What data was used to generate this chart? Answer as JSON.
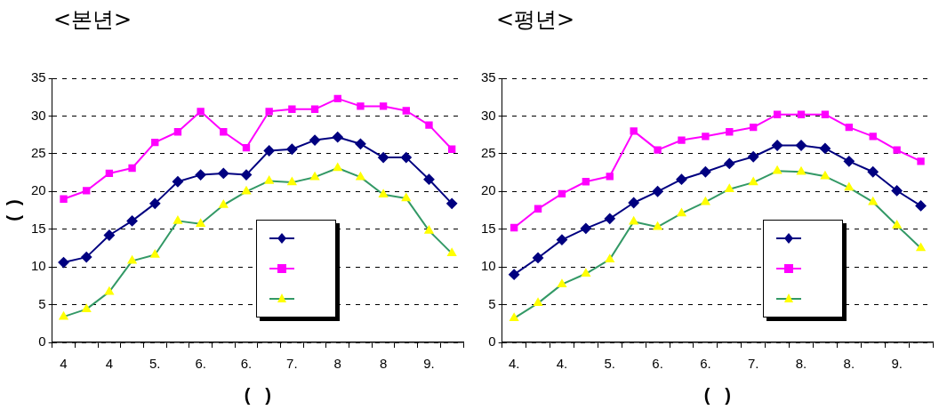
{
  "chart_data": [
    {
      "type": "line",
      "title": "<본년>",
      "xlabel": "(   )",
      "ylabel": "(  )",
      "categories": [
        "4",
        null,
        "4",
        null,
        "5.",
        null,
        "6.",
        null,
        "6.",
        null,
        "7.",
        null,
        "8",
        null,
        "8",
        null,
        "9.",
        null
      ],
      "ylim": [
        0,
        35
      ],
      "yticks": [
        0,
        5,
        10,
        15,
        20,
        25,
        30,
        35
      ],
      "grid": "y",
      "line_style": "solid",
      "series": [
        {
          "color": "#000080",
          "marker": "diamond",
          "values": [
            10.6,
            11.3,
            14.2,
            16.1,
            18.4,
            21.3,
            22.2,
            22.4,
            22.2,
            25.4,
            25.6,
            26.8,
            27.2,
            26.3,
            24.5,
            24.5,
            21.6,
            18.4
          ]
        },
        {
          "color": "#ff00ff",
          "marker": "square",
          "values": [
            19.0,
            20.1,
            22.4,
            23.1,
            26.5,
            27.9,
            30.6,
            27.9,
            25.8,
            30.6,
            30.9,
            30.9,
            32.3,
            31.3,
            31.3,
            30.7,
            28.8,
            25.6
          ]
        },
        {
          "color": "#339966",
          "colors": [
            "#ffff00",
            "#ffff00",
            "#ffff00",
            "#ffff00",
            "#ffff00",
            "#ffff00",
            "#ffff00",
            "#ffff00",
            "#ffff00",
            "#ffff00",
            "#ffff00",
            "#ffff00",
            "#ffff00",
            "#ffff00",
            "#ffff00",
            "#ffff00",
            "#ffff00",
            "#ffff00"
          ],
          "marker": "triangle",
          "values": [
            3.4,
            4.4,
            6.7,
            10.8,
            11.6,
            16.1,
            15.7,
            18.2,
            20.0,
            21.4,
            21.2,
            21.9,
            23.1,
            21.9,
            19.6,
            19.1,
            14.8,
            11.8
          ]
        }
      ]
    },
    {
      "type": "line",
      "title": "<평년>",
      "xlabel": "(   )",
      "categories": [
        "4.",
        null,
        "4.",
        null,
        "5.",
        null,
        "6.",
        null,
        "6.",
        null,
        "7.",
        null,
        "8.",
        null,
        "8.",
        null,
        "9.",
        null
      ],
      "ylim": [
        0,
        35
      ],
      "yticks": [
        0,
        5,
        10,
        15,
        20,
        25,
        30,
        35
      ],
      "grid": "y",
      "line_style": "solid",
      "series": [
        {
          "color": "#000080",
          "marker": "diamond",
          "values": [
            9.0,
            11.2,
            13.6,
            15.1,
            16.4,
            18.5,
            20.0,
            21.6,
            22.6,
            23.7,
            24.6,
            26.1,
            26.1,
            25.7,
            24.0,
            22.6,
            20.1,
            18.1
          ]
        },
        {
          "color": "#ff00ff",
          "marker": "square",
          "values": [
            15.2,
            17.7,
            19.7,
            21.3,
            22.0,
            28.0,
            25.5,
            26.8,
            27.3,
            27.9,
            28.5,
            30.2,
            30.2,
            30.2,
            28.5,
            27.3,
            25.5,
            24.0
          ]
        },
        {
          "color": "#339966",
          "colors": [
            "#ffff00",
            "#ffff00",
            "#ffff00",
            "#ffff00",
            "#ffff00",
            "#ffff00",
            "#ffff00",
            "#ffff00",
            "#ffff00",
            "#ffff00",
            "#ffff00",
            "#ffff00",
            "#ffff00",
            "#ffff00",
            "#ffff00",
            "#ffff00",
            "#ffff00",
            "#ffff00"
          ],
          "marker": "triangle",
          "values": [
            3.2,
            5.2,
            7.7,
            9.1,
            11.0,
            16.0,
            15.3,
            17.1,
            18.6,
            20.3,
            21.2,
            22.7,
            22.6,
            22.0,
            20.5,
            18.6,
            15.5,
            12.5
          ]
        }
      ]
    }
  ]
}
